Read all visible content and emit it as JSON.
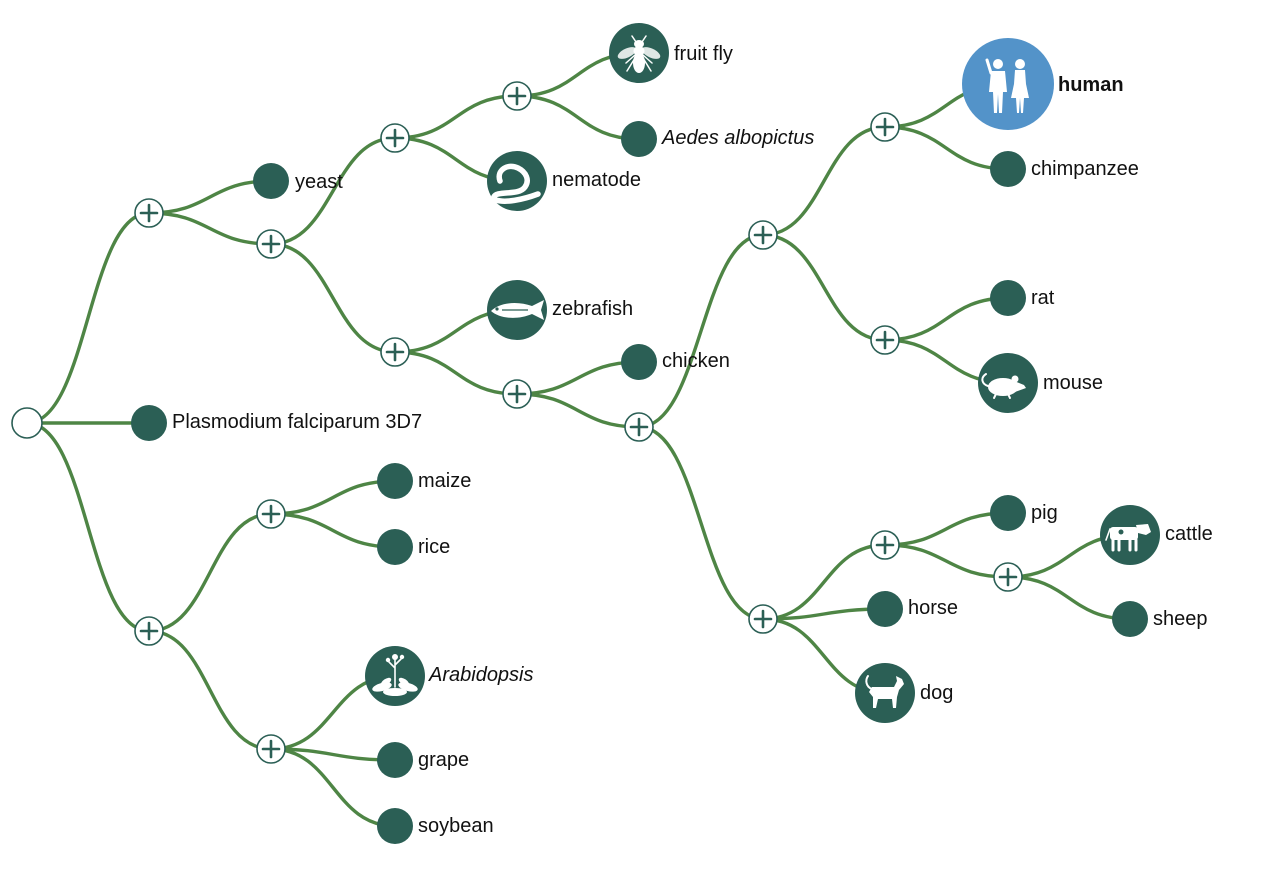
{
  "colors": {
    "edge": "#4e8545",
    "node": "#2b5f55",
    "selected": "#5393c9"
  },
  "species": {
    "plasmodium": "Plasmodium falciparum 3D7",
    "yeast": "yeast",
    "fruit_fly": "fruit fly",
    "aedes": "Aedes albopictus",
    "nematode": "nematode",
    "zebrafish": "zebrafish",
    "chicken": "chicken",
    "human": "human",
    "chimpanzee": "chimpanzee",
    "rat": "rat",
    "mouse": "mouse",
    "pig": "pig",
    "cattle": "cattle",
    "sheep": "sheep",
    "horse": "horse",
    "dog": "dog",
    "maize": "maize",
    "rice": "rice",
    "arabidopsis": "Arabidopsis",
    "grape": "grape",
    "soybean": "soybean"
  },
  "icons": {
    "fruit_fly": "fly-icon",
    "nematode": "worm-icon",
    "zebrafish": "fish-icon",
    "human": "human-figures-icon",
    "mouse": "mouse-icon",
    "cattle": "cow-icon",
    "dog": "dog-icon",
    "arabidopsis": "plant-icon"
  },
  "selected_species": "human"
}
